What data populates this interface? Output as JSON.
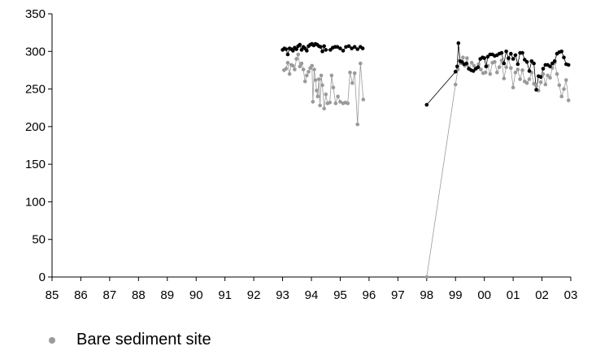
{
  "chart_data": {
    "type": "scatter",
    "x_tick_labels": [
      "85",
      "86",
      "87",
      "88",
      "89",
      "90",
      "91",
      "92",
      "93",
      "94",
      "95",
      "96",
      "97",
      "98",
      "99",
      "00",
      "01",
      "02",
      "03"
    ],
    "y_ticks": [
      0,
      50,
      100,
      150,
      200,
      250,
      300,
      350
    ],
    "xlim": [
      1985,
      2003
    ],
    "ylim": [
      0,
      350
    ],
    "grid": false,
    "legend_position": "bottom-left",
    "colors": {
      "bare": "#9a9a9a",
      "black": "#000000"
    },
    "series": [
      {
        "key": "bare",
        "name": "Bare sediment site",
        "color": "#9a9a9a",
        "points": [
          [
            1993.05,
            275
          ],
          [
            1993.12,
            277
          ],
          [
            1993.18,
            285
          ],
          [
            1993.24,
            270
          ],
          [
            1993.3,
            282
          ],
          [
            1993.36,
            281
          ],
          [
            1993.42,
            276
          ],
          [
            1993.48,
            290
          ],
          [
            1993.54,
            296
          ],
          [
            1993.6,
            280
          ],
          [
            1993.66,
            284
          ],
          [
            1993.72,
            276
          ],
          [
            1993.78,
            260
          ],
          [
            1993.84,
            268
          ],
          [
            1993.9,
            273
          ],
          [
            1993.96,
            278
          ],
          [
            1994.02,
            281
          ],
          [
            1994.05,
            233
          ],
          [
            1994.1,
            276
          ],
          [
            1994.14,
            262
          ],
          [
            1994.18,
            248
          ],
          [
            1994.22,
            240
          ],
          [
            1994.26,
            263
          ],
          [
            1994.3,
            228
          ],
          [
            1994.34,
            268
          ],
          [
            1994.38,
            255
          ],
          [
            1994.44,
            224
          ],
          [
            1994.5,
            243
          ],
          [
            1994.56,
            231
          ],
          [
            1994.64,
            232
          ],
          [
            1994.7,
            268
          ],
          [
            1994.76,
            252
          ],
          [
            1994.84,
            231
          ],
          [
            1994.92,
            240
          ],
          [
            1995.0,
            233
          ],
          [
            1995.1,
            231
          ],
          [
            1995.18,
            232
          ],
          [
            1995.26,
            231
          ],
          [
            1995.34,
            272
          ],
          [
            1995.42,
            258
          ],
          [
            1995.5,
            271
          ],
          [
            1995.6,
            203
          ],
          [
            1995.7,
            284
          ],
          [
            1995.8,
            236
          ],
          [
            1998.0,
            0
          ],
          [
            1999.0,
            256
          ],
          [
            1999.08,
            276
          ],
          [
            1999.14,
            288
          ],
          [
            1999.2,
            284
          ],
          [
            1999.26,
            292
          ],
          [
            1999.32,
            281
          ],
          [
            1999.4,
            291
          ],
          [
            1999.48,
            277
          ],
          [
            1999.56,
            285
          ],
          [
            1999.64,
            281
          ],
          [
            1999.72,
            277
          ],
          [
            1999.8,
            283
          ],
          [
            1999.88,
            276
          ],
          [
            1999.96,
            271
          ],
          [
            2000.04,
            272
          ],
          [
            2000.12,
            281
          ],
          [
            2000.2,
            270
          ],
          [
            2000.28,
            285
          ],
          [
            2000.36,
            286
          ],
          [
            2000.44,
            272
          ],
          [
            2000.52,
            279
          ],
          [
            2000.6,
            288
          ],
          [
            2000.68,
            264
          ],
          [
            2000.76,
            279
          ],
          [
            2000.84,
            290
          ],
          [
            2000.92,
            278
          ],
          [
            2001.0,
            252
          ],
          [
            2001.08,
            272
          ],
          [
            2001.16,
            276
          ],
          [
            2001.24,
            263
          ],
          [
            2001.32,
            275
          ],
          [
            2001.4,
            260
          ],
          [
            2001.48,
            258
          ],
          [
            2001.56,
            263
          ],
          [
            2001.64,
            272
          ],
          [
            2001.72,
            257
          ],
          [
            2001.8,
            254
          ],
          [
            2001.88,
            248
          ],
          [
            2001.96,
            259
          ],
          [
            2002.04,
            270
          ],
          [
            2002.12,
            256
          ],
          [
            2002.2,
            268
          ],
          [
            2002.28,
            265
          ],
          [
            2002.36,
            278
          ],
          [
            2002.44,
            285
          ],
          [
            2002.52,
            270
          ],
          [
            2002.6,
            255
          ],
          [
            2002.68,
            240
          ],
          [
            2002.76,
            250
          ],
          [
            2002.84,
            262
          ],
          [
            2002.92,
            235
          ]
        ]
      },
      {
        "key": "black",
        "color": "#000000",
        "points": [
          [
            1993.0,
            302
          ],
          [
            1993.06,
            304
          ],
          [
            1993.12,
            303
          ],
          [
            1993.18,
            296
          ],
          [
            1993.24,
            304
          ],
          [
            1993.3,
            303
          ],
          [
            1993.36,
            301
          ],
          [
            1993.42,
            305
          ],
          [
            1993.48,
            303
          ],
          [
            1993.54,
            307
          ],
          [
            1993.6,
            309
          ],
          [
            1993.66,
            302
          ],
          [
            1993.72,
            306
          ],
          [
            1993.78,
            304
          ],
          [
            1993.84,
            301
          ],
          [
            1993.9,
            307
          ],
          [
            1993.96,
            309
          ],
          [
            1994.02,
            310
          ],
          [
            1994.08,
            308
          ],
          [
            1994.14,
            310
          ],
          [
            1994.2,
            309
          ],
          [
            1994.26,
            307
          ],
          [
            1994.32,
            306
          ],
          [
            1994.38,
            300
          ],
          [
            1994.44,
            307
          ],
          [
            1994.5,
            302
          ],
          [
            1994.66,
            302
          ],
          [
            1994.74,
            305
          ],
          [
            1994.82,
            306
          ],
          [
            1994.9,
            306
          ],
          [
            1995.0,
            304
          ],
          [
            1995.1,
            301
          ],
          [
            1995.2,
            306
          ],
          [
            1995.3,
            307
          ],
          [
            1995.4,
            304
          ],
          [
            1995.5,
            306
          ],
          [
            1995.6,
            303
          ],
          [
            1995.7,
            306
          ],
          [
            1995.78,
            304
          ],
          [
            1998.0,
            229
          ],
          [
            1999.0,
            273
          ],
          [
            1999.06,
            280
          ],
          [
            1999.1,
            311
          ],
          [
            1999.16,
            287
          ],
          [
            1999.22,
            286
          ],
          [
            1999.3,
            283
          ],
          [
            1999.38,
            284
          ],
          [
            1999.46,
            277
          ],
          [
            1999.54,
            275
          ],
          [
            1999.62,
            274
          ],
          [
            1999.7,
            277
          ],
          [
            1999.78,
            279
          ],
          [
            1999.86,
            290
          ],
          [
            1999.94,
            292
          ],
          [
            2000.0,
            291
          ],
          [
            2000.06,
            280
          ],
          [
            2000.12,
            293
          ],
          [
            2000.2,
            296
          ],
          [
            2000.28,
            296
          ],
          [
            2000.36,
            294
          ],
          [
            2000.44,
            295
          ],
          [
            2000.52,
            297
          ],
          [
            2000.6,
            298
          ],
          [
            2000.68,
            284
          ],
          [
            2000.76,
            300
          ],
          [
            2000.84,
            291
          ],
          [
            2000.92,
            297
          ],
          [
            2001.0,
            290
          ],
          [
            2001.08,
            295
          ],
          [
            2001.16,
            283
          ],
          [
            2001.24,
            298
          ],
          [
            2001.32,
            298
          ],
          [
            2001.4,
            289
          ],
          [
            2001.48,
            286
          ],
          [
            2001.56,
            274
          ],
          [
            2001.64,
            287
          ],
          [
            2001.72,
            284
          ],
          [
            2001.8,
            249
          ],
          [
            2001.88,
            267
          ],
          [
            2001.96,
            266
          ],
          [
            2002.04,
            277
          ],
          [
            2002.12,
            282
          ],
          [
            2002.2,
            282
          ],
          [
            2002.28,
            280
          ],
          [
            2002.36,
            284
          ],
          [
            2002.44,
            287
          ],
          [
            2002.52,
            297
          ],
          [
            2002.6,
            299
          ],
          [
            2002.68,
            300
          ],
          [
            2002.76,
            292
          ],
          [
            2002.84,
            283
          ],
          [
            2002.92,
            282
          ]
        ]
      }
    ]
  },
  "legend": {
    "label": "Bare sediment site",
    "color": "#9a9a9a"
  }
}
